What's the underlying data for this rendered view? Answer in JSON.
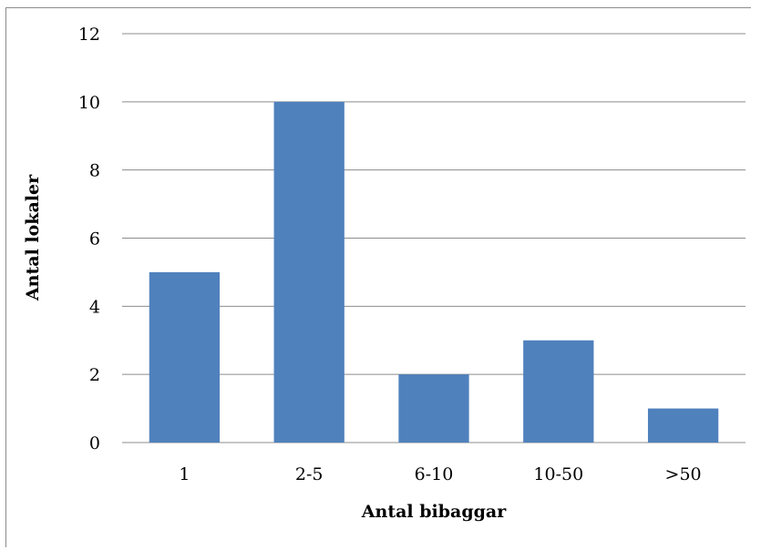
{
  "chart_data": {
    "type": "bar",
    "categories": [
      "1",
      "2-5",
      "6-10",
      "10-50",
      ">50"
    ],
    "values": [
      5,
      10,
      2,
      3,
      1
    ],
    "title": "",
    "xlabel": "Antal bibaggar",
    "ylabel": "Antal lokaler",
    "ylim": [
      0,
      12
    ],
    "yticks": [
      0,
      2,
      4,
      6,
      8,
      10,
      12
    ],
    "grid": true,
    "legend": "none",
    "bar_color": "#4f81bd",
    "grid_color": "#8c8c8c"
  }
}
